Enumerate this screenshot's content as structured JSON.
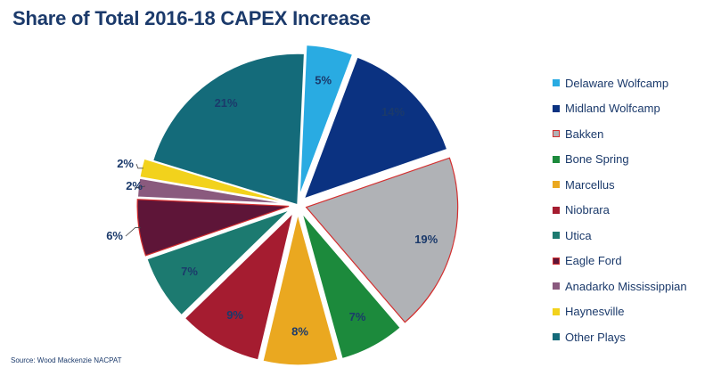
{
  "title": "Share of Total 2016-18 CAPEX Increase",
  "source": "Source: Wood Mackenzie NACPAT",
  "chart_data": {
    "type": "pie",
    "title": "Share of Total 2016-18 CAPEX Increase",
    "legend_position": "right",
    "slices": [
      {
        "name": "Delaware Wolfcamp",
        "value": 5,
        "label": "5%",
        "color": "#29abe2",
        "exploded": true,
        "label_color": "#1b3a6b"
      },
      {
        "name": "Midland Wolfcamp",
        "value": 14,
        "label": "14%",
        "color": "#0b3281",
        "exploded": true,
        "label_color": "#1b3a6b"
      },
      {
        "name": "Bakken",
        "value": 19,
        "label": "19%",
        "color": "#b0b2b6",
        "exploded": true,
        "label_color": "#1b3a6b",
        "outline": "#d32f2f"
      },
      {
        "name": "Bone Spring",
        "value": 7,
        "label": "7%",
        "color": "#1c8a3c",
        "exploded": true,
        "label_color": "#1b3a6b"
      },
      {
        "name": "Marcellus",
        "value": 8,
        "label": "8%",
        "color": "#eaa820",
        "exploded": true,
        "label_color": "#1b3a6b"
      },
      {
        "name": "Niobrara",
        "value": 9,
        "label": "9%",
        "color": "#a51c30",
        "exploded": true,
        "label_color": "#1b3a6b"
      },
      {
        "name": "Utica",
        "value": 7,
        "label": "7%",
        "color": "#1c7a70",
        "exploded": true,
        "label_color": "#1b3a6b"
      },
      {
        "name": "Eagle Ford",
        "value": 6,
        "label": "6%",
        "color": "#5e1538",
        "exploded": true,
        "label_color": "#1b3a6b",
        "outline": "#d32f2f"
      },
      {
        "name": "Anadarko Mississippian",
        "value": 2,
        "label": "2%",
        "color": "#8a5a7e",
        "exploded": true,
        "label_color": "#1b3a6b"
      },
      {
        "name": "Haynesville",
        "value": 2,
        "label": "2%",
        "color": "#f2d21c",
        "exploded": true,
        "label_color": "#1b3a6b"
      },
      {
        "name": "Other Plays",
        "value": 21,
        "label": "21%",
        "color": "#146b7a",
        "exploded": false,
        "label_color": "#1b3a6b"
      }
    ]
  }
}
